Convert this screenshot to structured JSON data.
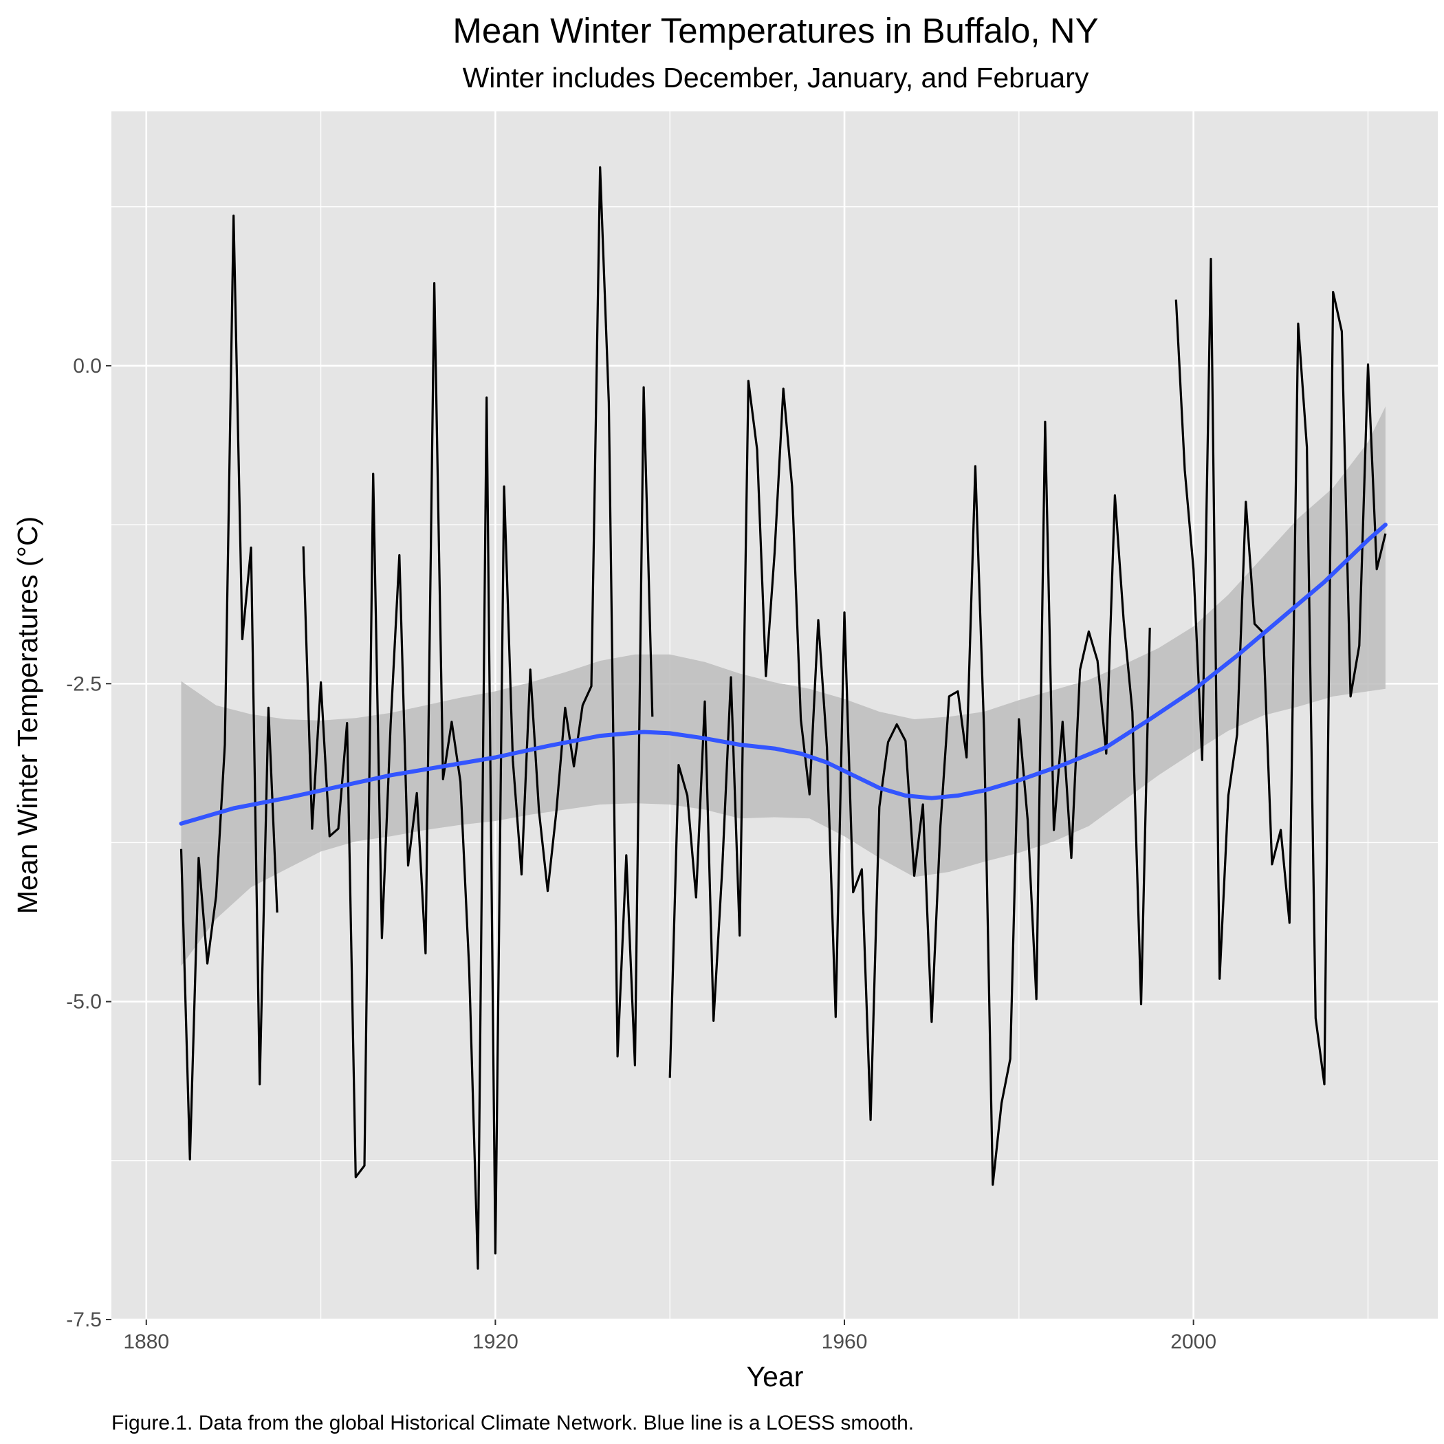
{
  "colors": {
    "panel": "#e5e5e5",
    "grid": "#ffffff",
    "data_line": "#000000",
    "smooth_line": "#3355ff",
    "ribbon": "#bdbdbd"
  },
  "caption": "Figure.1. Data from the global Historical Climate Network. Blue line is a LOESS smooth.",
  "chart_data": {
    "type": "line",
    "title": "Mean Winter Temperatures in Buffalo, NY",
    "subtitle": "Winter includes December, January, and February",
    "xlabel": "Year",
    "ylabel": "Mean Winter Temperatures (°C)",
    "xlim": [
      1876,
      2028
    ],
    "ylim": [
      -7.5,
      2.0
    ],
    "x_ticks": [
      1880,
      1920,
      1960,
      2000
    ],
    "x_tick_labels": [
      "1880",
      "1920",
      "1960",
      "2000"
    ],
    "y_ticks": [
      0.0,
      -2.5,
      -5.0,
      -7.5
    ],
    "y_tick_labels": [
      "0.0",
      "-2.5",
      "-5.0",
      "-7.5"
    ],
    "grid": true,
    "legend": "none",
    "series": [
      {
        "type": "line",
        "points": [
          [
            1884,
            -3.8
          ],
          [
            1885,
            -6.24
          ],
          [
            1886,
            -3.87
          ],
          [
            1887,
            -4.7
          ],
          [
            1888,
            -4.17
          ],
          [
            1889,
            -2.98
          ],
          [
            1890,
            1.18
          ],
          [
            1891,
            -2.15
          ],
          [
            1892,
            -1.43
          ],
          [
            1893,
            -5.65
          ],
          [
            1894,
            -2.69
          ],
          [
            1895,
            -4.3
          ],
          null,
          [
            1898,
            -1.42
          ],
          [
            1899,
            -3.64
          ],
          [
            1900,
            -2.49
          ],
          [
            1901,
            -3.7
          ],
          [
            1902,
            -3.64
          ],
          [
            1903,
            -2.81
          ],
          [
            1904,
            -6.38
          ],
          [
            1905,
            -6.29
          ],
          [
            1906,
            -0.85
          ],
          [
            1907,
            -4.5
          ],
          [
            1908,
            -2.82
          ],
          [
            1909,
            -1.49
          ],
          [
            1910,
            -3.93
          ],
          [
            1911,
            -3.36
          ],
          [
            1912,
            -4.62
          ],
          [
            1913,
            0.65
          ],
          [
            1914,
            -3.25
          ],
          [
            1915,
            -2.8
          ],
          [
            1916,
            -3.27
          ],
          [
            1917,
            -4.74
          ],
          [
            1918,
            -7.1
          ],
          [
            1919,
            -0.25
          ],
          [
            1920,
            -6.98
          ],
          [
            1921,
            -0.95
          ],
          [
            1922,
            -3.1
          ],
          [
            1923,
            -4.0
          ],
          [
            1924,
            -2.39
          ],
          [
            1925,
            -3.5
          ],
          [
            1926,
            -4.13
          ],
          [
            1927,
            -3.5
          ],
          [
            1928,
            -2.69
          ],
          [
            1929,
            -3.15
          ],
          [
            1930,
            -2.67
          ],
          [
            1931,
            -2.52
          ],
          [
            1932,
            1.56
          ],
          [
            1933,
            -0.29
          ],
          [
            1934,
            -5.43
          ],
          [
            1935,
            -3.85
          ],
          [
            1936,
            -5.5
          ],
          [
            1937,
            -0.17
          ],
          [
            1938,
            -2.76
          ],
          null,
          [
            1940,
            -5.6
          ],
          [
            1941,
            -3.14
          ],
          [
            1942,
            -3.38
          ],
          [
            1943,
            -4.18
          ],
          [
            1944,
            -2.64
          ],
          [
            1945,
            -5.15
          ],
          [
            1946,
            -3.95
          ],
          [
            1947,
            -2.45
          ],
          [
            1948,
            -4.48
          ],
          [
            1949,
            -0.12
          ],
          [
            1950,
            -0.66
          ],
          [
            1951,
            -2.44
          ],
          [
            1952,
            -1.47
          ],
          [
            1953,
            -0.18
          ],
          [
            1954,
            -0.95
          ],
          [
            1955,
            -2.78
          ],
          [
            1956,
            -3.37
          ],
          [
            1957,
            -2.0
          ],
          [
            1958,
            -3.0
          ],
          [
            1959,
            -5.12
          ],
          [
            1960,
            -1.94
          ],
          [
            1961,
            -4.14
          ],
          [
            1962,
            -3.96
          ],
          [
            1963,
            -5.93
          ],
          [
            1964,
            -3.47
          ],
          [
            1965,
            -2.96
          ],
          [
            1966,
            -2.82
          ],
          [
            1967,
            -2.95
          ],
          [
            1968,
            -4.01
          ],
          [
            1969,
            -3.45
          ],
          [
            1970,
            -5.16
          ],
          [
            1971,
            -3.62
          ],
          [
            1972,
            -2.6
          ],
          [
            1973,
            -2.56
          ],
          [
            1974,
            -3.08
          ],
          [
            1975,
            -0.79
          ],
          [
            1976,
            -2.87
          ],
          [
            1977,
            -6.44
          ],
          [
            1978,
            -5.8
          ],
          [
            1979,
            -5.45
          ],
          [
            1980,
            -2.78
          ],
          [
            1981,
            -3.57
          ],
          [
            1982,
            -4.98
          ],
          [
            1983,
            -0.44
          ],
          [
            1984,
            -3.65
          ],
          [
            1985,
            -2.8
          ],
          [
            1986,
            -3.87
          ],
          [
            1987,
            -2.39
          ],
          [
            1988,
            -2.09
          ],
          [
            1989,
            -2.32
          ],
          [
            1990,
            -3.05
          ],
          [
            1991,
            -1.02
          ],
          [
            1992,
            -2.0
          ],
          [
            1993,
            -2.72
          ],
          [
            1994,
            -5.02
          ],
          [
            1995,
            -2.06
          ],
          null,
          [
            1998,
            0.52
          ],
          [
            1999,
            -0.82
          ],
          [
            2000,
            -1.6
          ],
          [
            2001,
            -3.1
          ],
          [
            2002,
            0.84
          ],
          [
            2003,
            -4.82
          ],
          [
            2004,
            -3.38
          ],
          [
            2005,
            -2.9
          ],
          [
            2006,
            -1.07
          ],
          [
            2007,
            -2.03
          ],
          [
            2008,
            -2.1
          ],
          [
            2009,
            -3.92
          ],
          [
            2010,
            -3.65
          ],
          [
            2011,
            -4.38
          ],
          [
            2012,
            0.33
          ],
          [
            2013,
            -0.64
          ],
          [
            2014,
            -5.13
          ],
          [
            2015,
            -5.65
          ],
          [
            2016,
            0.58
          ],
          [
            2017,
            0.27
          ],
          [
            2018,
            -2.6
          ],
          [
            2019,
            -2.2
          ],
          [
            2020,
            0.01
          ],
          [
            2021,
            -1.6
          ],
          [
            2022,
            -1.32
          ]
        ]
      },
      {
        "type": "loess",
        "points": [
          [
            1884,
            -3.6
          ],
          [
            1890,
            -3.48
          ],
          [
            1896,
            -3.4
          ],
          [
            1902,
            -3.31
          ],
          [
            1908,
            -3.22
          ],
          [
            1914,
            -3.15
          ],
          [
            1920,
            -3.08
          ],
          [
            1926,
            -2.99
          ],
          [
            1932,
            -2.91
          ],
          [
            1937,
            -2.88
          ],
          [
            1940,
            -2.89
          ],
          [
            1944,
            -2.93
          ],
          [
            1948,
            -2.98
          ],
          [
            1952,
            -3.01
          ],
          [
            1955,
            -3.05
          ],
          [
            1958,
            -3.12
          ],
          [
            1961,
            -3.22
          ],
          [
            1964,
            -3.32
          ],
          [
            1967,
            -3.38
          ],
          [
            1970,
            -3.4
          ],
          [
            1973,
            -3.38
          ],
          [
            1976,
            -3.34
          ],
          [
            1980,
            -3.26
          ],
          [
            1985,
            -3.14
          ],
          [
            1990,
            -3.0
          ],
          [
            1995,
            -2.78
          ],
          [
            2000,
            -2.55
          ],
          [
            2005,
            -2.28
          ],
          [
            2010,
            -1.99
          ],
          [
            2015,
            -1.7
          ],
          [
            2020,
            -1.37
          ],
          [
            2022,
            -1.25
          ]
        ]
      },
      {
        "type": "confidence-band",
        "upper": [
          [
            1884,
            -2.48
          ],
          [
            1888,
            -2.67
          ],
          [
            1892,
            -2.74
          ],
          [
            1896,
            -2.78
          ],
          [
            1900,
            -2.79
          ],
          [
            1904,
            -2.77
          ],
          [
            1908,
            -2.73
          ],
          [
            1912,
            -2.67
          ],
          [
            1916,
            -2.61
          ],
          [
            1920,
            -2.56
          ],
          [
            1924,
            -2.49
          ],
          [
            1928,
            -2.41
          ],
          [
            1932,
            -2.32
          ],
          [
            1936,
            -2.27
          ],
          [
            1940,
            -2.27
          ],
          [
            1944,
            -2.33
          ],
          [
            1948,
            -2.42
          ],
          [
            1952,
            -2.49
          ],
          [
            1956,
            -2.54
          ],
          [
            1960,
            -2.62
          ],
          [
            1964,
            -2.72
          ],
          [
            1968,
            -2.78
          ],
          [
            1972,
            -2.76
          ],
          [
            1976,
            -2.72
          ],
          [
            1980,
            -2.63
          ],
          [
            1984,
            -2.55
          ],
          [
            1988,
            -2.47
          ],
          [
            1992,
            -2.35
          ],
          [
            1996,
            -2.22
          ],
          [
            2000,
            -2.05
          ],
          [
            2004,
            -1.8
          ],
          [
            2008,
            -1.5
          ],
          [
            2012,
            -1.2
          ],
          [
            2016,
            -0.96
          ],
          [
            2020,
            -0.6
          ],
          [
            2022,
            -0.32
          ]
        ],
        "lower": [
          [
            1884,
            -4.72
          ],
          [
            1888,
            -4.35
          ],
          [
            1892,
            -4.1
          ],
          [
            1896,
            -3.96
          ],
          [
            1900,
            -3.82
          ],
          [
            1904,
            -3.74
          ],
          [
            1908,
            -3.7
          ],
          [
            1912,
            -3.65
          ],
          [
            1916,
            -3.61
          ],
          [
            1920,
            -3.58
          ],
          [
            1924,
            -3.53
          ],
          [
            1928,
            -3.49
          ],
          [
            1932,
            -3.45
          ],
          [
            1936,
            -3.44
          ],
          [
            1940,
            -3.45
          ],
          [
            1944,
            -3.49
          ],
          [
            1948,
            -3.56
          ],
          [
            1952,
            -3.55
          ],
          [
            1956,
            -3.56
          ],
          [
            1960,
            -3.7
          ],
          [
            1964,
            -3.87
          ],
          [
            1968,
            -4.02
          ],
          [
            1972,
            -3.98
          ],
          [
            1976,
            -3.9
          ],
          [
            1980,
            -3.83
          ],
          [
            1984,
            -3.74
          ],
          [
            1988,
            -3.62
          ],
          [
            1992,
            -3.42
          ],
          [
            1996,
            -3.22
          ],
          [
            2000,
            -3.04
          ],
          [
            2004,
            -2.87
          ],
          [
            2008,
            -2.75
          ],
          [
            2012,
            -2.68
          ],
          [
            2016,
            -2.6
          ],
          [
            2020,
            -2.56
          ],
          [
            2022,
            -2.54
          ]
        ]
      }
    ]
  }
}
